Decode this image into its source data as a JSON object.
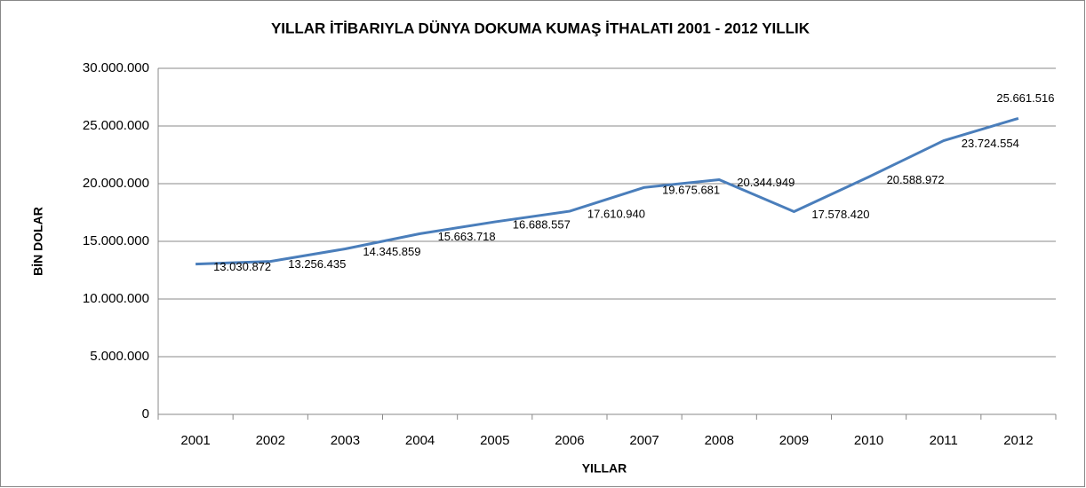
{
  "chart_data": {
    "type": "line",
    "title": "YILLAR İTİBARIYLA  DÜNYA DOKUMA KUMAŞ İTHALATI 2001 - 2012 YILLIK",
    "x_label": "YILLAR",
    "y_label": "BİN DOLAR",
    "categories": [
      "2001",
      "2002",
      "2003",
      "2004",
      "2005",
      "2006",
      "2007",
      "2008",
      "2009",
      "2010",
      "2011",
      "2012"
    ],
    "series": [
      {
        "name": "BİN DOLAR",
        "color": "#4a7ebb",
        "values": [
          13030872,
          13256435,
          14345859,
          15663718,
          16688557,
          17610940,
          19675681,
          20344949,
          17578420,
          20588972,
          23724554,
          25661516
        ],
        "value_labels": [
          "13.030.872",
          "13.256.435",
          "14.345.859",
          "15.663.718",
          "16.688.557",
          "17.610.940",
          "19.675.681",
          "20.344.949",
          "17.578.420",
          "20.588.972",
          "23.724.554",
          "25.661.516"
        ]
      }
    ],
    "ylim": [
      0,
      30000000
    ],
    "yticks": [
      0,
      {
        "value": 5000000,
        "label": "5.000.000"
      },
      {
        "value": 10000000,
        "label": "10.000.000"
      },
      {
        "value": 15000000,
        "label": "15.000.000"
      },
      {
        "value": 20000000,
        "label": "20.000.000"
      },
      {
        "value": 25000000,
        "label": "25.000.000"
      },
      {
        "value": 30000000,
        "label": "30.000.000"
      }
    ],
    "grid": true
  }
}
